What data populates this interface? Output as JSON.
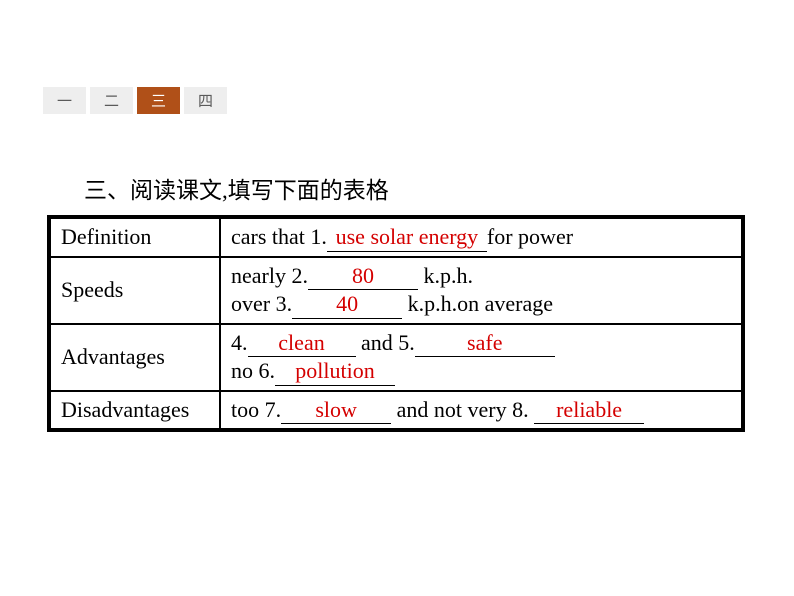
{
  "tabs": {
    "items": [
      "一",
      "二",
      "三",
      "四"
    ],
    "activeIndex": 2,
    "colors": {
      "bg": "#eeeeee",
      "activeBg": "#b05018",
      "text": "#5a5a5a",
      "activeText": "#ffffff"
    }
  },
  "heading": "三、阅读课文,填写下面的表格",
  "table": {
    "border_color": "#000000",
    "answer_color": "#d40000",
    "rows": [
      {
        "label": "Definition",
        "line1_pre": "cars that 1.",
        "line1_ans": "use solar energy",
        "line1_post": "for power",
        "blank1_width": 160
      },
      {
        "label": "Speeds",
        "line1_pre": "nearly 2.",
        "line1_ans": "80",
        "line1_post": "  k.p.h.",
        "blank1_width": 110,
        "line2_pre": "over 3.",
        "line2_ans": "40",
        "line2_post": "  k.p.h.on average",
        "blank2_width": 110
      },
      {
        "label": "Advantages",
        "line1_pre": "4.",
        "line1_ans": "clean",
        "line1_mid": "  and 5.",
        "line1_ans2": "safe",
        "blank1_width": 108,
        "blank1b_width": 140,
        "line2_pre": "no 6.",
        "line2_ans": "pollution",
        "blank2_width": 120
      },
      {
        "label": "Disadvantages",
        "line1_pre": "too 7.",
        "line1_ans": "slow",
        "line1_mid": "  and not very 8. ",
        "line1_ans2": "reliable",
        "blank1_width": 110,
        "blank1b_width": 110
      }
    ]
  }
}
